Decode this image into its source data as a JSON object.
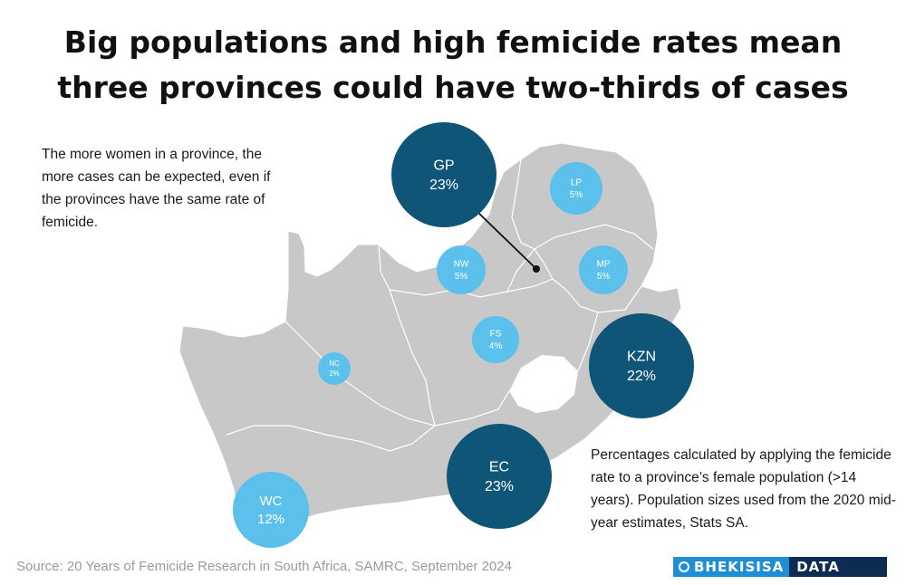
{
  "title": {
    "line1": "Big populations and high femicide rates mean",
    "line2": "three provinces could have two-thirds of cases"
  },
  "note_left": "The more women in a province, the more cases can be expected, even if the provinces have the same rate of femicide.",
  "note_right": "Percentages calculated by applying the femicide rate to a province’s female population (>14 years). Population sizes used from the 2020 mid-year estimates, Stats SA.",
  "source": "Source: 20 Years of Femicide Research in South Africa, SAMRC, September 2024",
  "logo": {
    "part1": "BHEKISISA",
    "part2": "DATA"
  },
  "colors": {
    "land": "#c8c8c8",
    "dark_bubble": "#0e5577",
    "light_bubble": "#5bc1ec"
  },
  "provinces": [
    {
      "code": "GP",
      "value": "23%",
      "style": "dark"
    },
    {
      "code": "LP",
      "value": "5%",
      "style": "light"
    },
    {
      "code": "NW",
      "value": "5%",
      "style": "light"
    },
    {
      "code": "MP",
      "value": "5%",
      "style": "light"
    },
    {
      "code": "FS",
      "value": "4%",
      "style": "light"
    },
    {
      "code": "KZN",
      "value": "22%",
      "style": "dark"
    },
    {
      "code": "NC",
      "value": "2%",
      "style": "light"
    },
    {
      "code": "EC",
      "value": "23%",
      "style": "dark"
    },
    {
      "code": "WC",
      "value": "12%",
      "style": "light"
    }
  ]
}
